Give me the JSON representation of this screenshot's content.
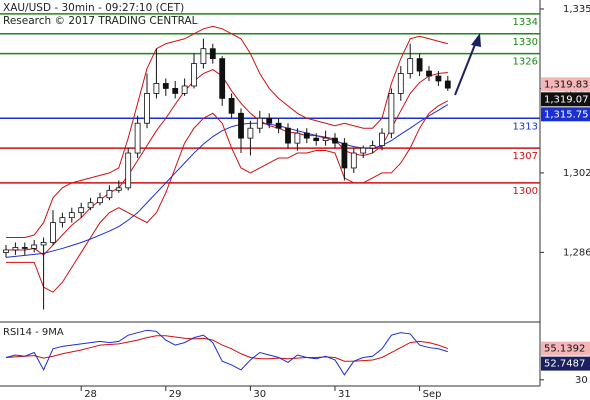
{
  "chart_data": {
    "type": "candlestick",
    "title": "XAU/USD - 30min - 09:27:10 (CET)",
    "subtitle": "Research © 2017 TRADING CENTRAL",
    "categories": [
      null,
      null,
      null,
      null,
      null,
      null,
      null,
      null,
      "28",
      null,
      null,
      null,
      null,
      null,
      null,
      null,
      null,
      "29",
      null,
      null,
      null,
      null,
      null,
      null,
      null,
      null,
      "30",
      null,
      null,
      null,
      null,
      null,
      null,
      null,
      null,
      "31",
      null,
      null,
      null,
      null,
      null,
      null,
      null,
      null,
      "Sep",
      null,
      null,
      null
    ],
    "open": [
      1286,
      1286.5,
      1287,
      1286.8,
      1287.5,
      1288,
      1292,
      1293,
      1294,
      1295,
      1296,
      1297,
      1298.5,
      1299,
      1306,
      1312,
      1318,
      1320,
      1319,
      1318,
      1319.5,
      1324,
      1327,
      1325,
      1317,
      1314,
      1309,
      1311,
      1313,
      1312,
      1311,
      1308,
      1310,
      1309,
      1308.5,
      1309,
      1308,
      1303,
      1306,
      1307,
      1307.5,
      1310,
      1318,
      1322,
      1325,
      1322.5,
      1321.5,
      1320.5
    ],
    "high": [
      1287.5,
      1288,
      1288,
      1288.5,
      1289,
      1294.5,
      1294,
      1295,
      1296,
      1297,
      1298,
      1299.5,
      1300.5,
      1307,
      1313.5,
      1322,
      1327,
      1321,
      1320.5,
      1321,
      1326,
      1329,
      1328,
      1325.5,
      1318,
      1315,
      1312.5,
      1314.5,
      1314,
      1313,
      1312,
      1311,
      1311,
      1310,
      1310.5,
      1310,
      1309,
      1307,
      1307.5,
      1308.5,
      1311,
      1319,
      1323.5,
      1328,
      1326,
      1323.5,
      1322.5,
      1321.5
    ],
    "low": [
      1285,
      1285.5,
      1285.5,
      1286,
      1274.5,
      1287.5,
      1291,
      1292,
      1293,
      1294.5,
      1295.5,
      1296.5,
      1298,
      1298.5,
      1305,
      1311,
      1317,
      1317.5,
      1317,
      1317.5,
      1319,
      1323,
      1324,
      1315.5,
      1313,
      1306,
      1305.5,
      1310,
      1311,
      1310,
      1307,
      1306.5,
      1308,
      1307.5,
      1307.5,
      1307,
      1300.5,
      1302,
      1305,
      1306,
      1306.5,
      1309,
      1316.5,
      1321,
      1321.5,
      1320.5,
      1319.5,
      1318.5
    ],
    "close": [
      1286.5,
      1287,
      1286.8,
      1287.5,
      1288,
      1292,
      1293,
      1294,
      1295,
      1296,
      1297,
      1298.5,
      1299,
      1306,
      1312,
      1318,
      1320,
      1319,
      1318,
      1319.5,
      1324,
      1327,
      1325,
      1317,
      1314,
      1309,
      1311,
      1313,
      1312,
      1311,
      1308,
      1310,
      1309,
      1308.5,
      1309,
      1308,
      1303,
      1306,
      1307,
      1307.5,
      1310,
      1318,
      1322,
      1325,
      1322.5,
      1321.5,
      1320.5,
      1319.07
    ],
    "overlays": [
      {
        "color": "#d01010",
        "values": [
          1289,
          1289,
          1289,
          1289.5,
          1292,
          1297,
          1299,
          1300,
          1300.5,
          1301,
          1301.5,
          1302,
          1303,
          1309,
          1316,
          1323,
          1327,
          1328,
          1328.5,
          1329,
          1330,
          1331,
          1331.5,
          1331,
          1330,
          1329,
          1326,
          1322,
          1319,
          1317,
          1315.5,
          1314,
          1313,
          1312.5,
          1312,
          1311.5,
          1312,
          1311.5,
          1311,
          1311,
          1313,
          1320,
          1325,
          1329,
          1329.5,
          1329,
          1328.5,
          1328
        ]
      },
      {
        "color": "#d01010",
        "values": [
          1286.5,
          1286.5,
          1286.5,
          1286.8,
          1285.5,
          1287.5,
          1289.5,
          1291.5,
          1293,
          1295,
          1296.5,
          1298,
          1299,
          1301.5,
          1304.5,
          1307.5,
          1310.5,
          1313,
          1315.8,
          1318.5,
          1320.5,
          1322,
          1322.8,
          1321.5,
          1318.5,
          1316,
          1314,
          1312.5,
          1311.5,
          1311,
          1310.2,
          1310,
          1309.5,
          1309.5,
          1309.2,
          1308.8,
          1306.5,
          1305.8,
          1305.5,
          1306,
          1307.5,
          1311,
          1314.5,
          1318,
          1320.2,
          1321.5,
          1322,
          1322.2
        ]
      },
      {
        "color": "#d01010",
        "values": [
          1284,
          1284,
          1284,
          1284,
          1279,
          1278,
          1280,
          1283,
          1286,
          1289,
          1292,
          1294,
          1295,
          1294,
          1293,
          1292,
          1294,
          1298,
          1303,
          1308,
          1311,
          1313,
          1314,
          1312,
          1307,
          1303,
          1302,
          1303,
          1304,
          1305,
          1305,
          1306,
          1306,
          1306.5,
          1306.5,
          1306,
          1301,
          1300,
          1300,
          1301,
          1302,
          1302,
          1304,
          1307,
          1311,
          1314,
          1315.5,
          1316.5
        ]
      },
      {
        "color": "#1a2fd0",
        "values": [
          1285,
          1285.2,
          1285.4,
          1285.6,
          1285.8,
          1286.3,
          1286.8,
          1287.4,
          1288,
          1288.7,
          1289.5,
          1290.3,
          1291.2,
          1292.5,
          1294,
          1296,
          1298,
          1300,
          1302,
          1304,
          1306,
          1307.8,
          1309.3,
          1310.5,
          1311.3,
          1311.8,
          1312,
          1312,
          1311.8,
          1311.5,
          1311,
          1310.5,
          1310,
          1309.5,
          1309,
          1308.5,
          1307.8,
          1307.3,
          1307,
          1307,
          1307.5,
          1308.5,
          1309.8,
          1311,
          1312.3,
          1313.5,
          1314.6,
          1315.75
        ]
      }
    ],
    "levels": [
      {
        "value": 1334,
        "color": "#1a8a1a"
      },
      {
        "value": 1330,
        "color": "#1a8a1a"
      },
      {
        "value": 1326,
        "color": "#1a8a1a"
      },
      {
        "value": 1313,
        "color": "#1a2fd0"
      },
      {
        "value": 1307,
        "color": "#d01010"
      },
      {
        "value": 1300,
        "color": "#d01010"
      }
    ],
    "price_tags": [
      {
        "value": 1319.83,
        "label": "1,319.83",
        "color": "#f4b6b6",
        "text_color": "#111"
      },
      {
        "value": 1319.07,
        "label": "1,319.07",
        "color": "#111111",
        "text_color": "#fff"
      },
      {
        "value": 1315.75,
        "label": "1,315.75",
        "color": "#1a2fd0",
        "text_color": "#fff"
      }
    ],
    "ylim": [
      1272.4,
      1336.8
    ],
    "yticks": [
      {
        "value": 1335,
        "label": "1,335"
      },
      {
        "value": 1319,
        "label": "1,319"
      },
      {
        "value": 1302,
        "label": "1,302"
      },
      {
        "value": 1286,
        "label": "1,286"
      }
    ],
    "rsi": {
      "title": "RSI14 - 9MA",
      "values": [
        48,
        50,
        49,
        52,
        38,
        55,
        57,
        58,
        59,
        60,
        61,
        60,
        61,
        66,
        68,
        70,
        69,
        62,
        58,
        60,
        64,
        66,
        60,
        45,
        42,
        38,
        46,
        52,
        50,
        48,
        44,
        50,
        48,
        47,
        49,
        46,
        34,
        45,
        48,
        49,
        55,
        66,
        68,
        67,
        58,
        56,
        55,
        52.7487
      ],
      "ma": [
        48,
        48.5,
        49,
        49.5,
        47.5,
        49,
        51,
        52.5,
        54,
        56,
        58,
        58.5,
        59,
        60.5,
        62,
        64,
        65.5,
        65.5,
        64.5,
        63.5,
        63,
        63.5,
        62,
        58,
        55,
        51,
        48,
        47,
        47,
        47.5,
        47,
        47.5,
        48,
        48,
        48.5,
        48,
        45,
        45,
        45.5,
        46,
        48,
        52,
        56,
        60,
        61,
        60,
        58,
        55.1392
      ],
      "color": "#1a2fd0",
      "ma_color": "#d01010",
      "tags": [
        {
          "value": 55.1392,
          "color": "#f4b6b6",
          "text_color": "#111"
        },
        {
          "value": 52.7487,
          "color": "#1a2060",
          "text_color": "#fff"
        }
      ],
      "ylim": [
        25,
        75
      ],
      "yticks": [
        30
      ]
    }
  }
}
